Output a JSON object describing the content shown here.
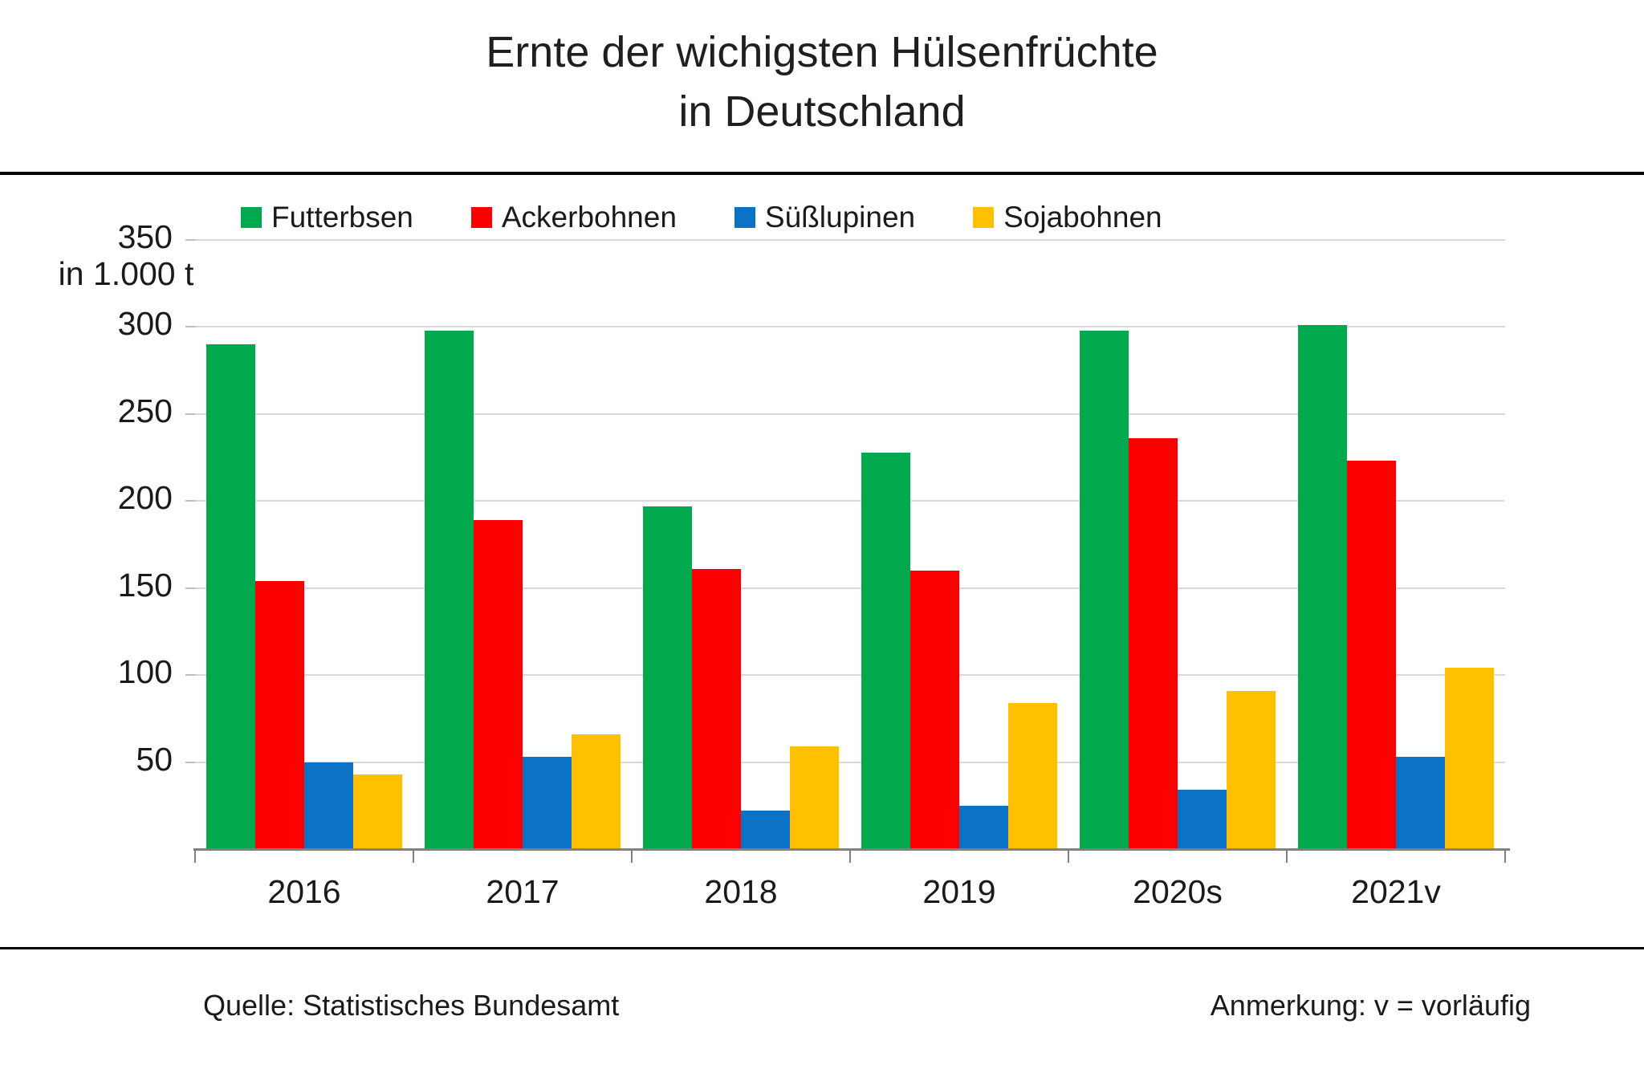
{
  "title": {
    "line1": "Ernte der wichigsten Hülsenfrüchte",
    "line2": "in Deutschland"
  },
  "y_axis": {
    "unit_label": "in 1.000 t",
    "ticks": [
      350,
      300,
      250,
      200,
      150,
      100,
      50
    ]
  },
  "footer": {
    "source": "Quelle: Statistisches Bundesamt",
    "note": "Anmerkung: v = vorläufig"
  },
  "colors": {
    "futterbsen": "#00A84E",
    "ackerbohnen": "#FA0000",
    "suesslupinen": "#0B72C5",
    "sojabohnen": "#FFC000",
    "gridline": "#d9d9d9",
    "axis": "#808080",
    "separator": "#000000"
  },
  "chart_data": {
    "type": "bar",
    "title": "Ernte der wichigsten Hülsenfrüchte in Deutschland",
    "ylabel": "in 1.000 t",
    "ylim": [
      0,
      350
    ],
    "grid": true,
    "legend_position": "top",
    "categories": [
      "2016",
      "2017",
      "2018",
      "2019",
      "2020s",
      "2021v"
    ],
    "series": [
      {
        "name": "Futterbsen",
        "color": "#00A84E",
        "values": [
          290,
          298,
          197,
          228,
          298,
          301
        ]
      },
      {
        "name": "Ackerbohnen",
        "color": "#FA0000",
        "values": [
          154,
          189,
          161,
          160,
          236,
          223
        ]
      },
      {
        "name": "Süßlupinen",
        "color": "#0B72C5",
        "values": [
          50,
          53,
          22,
          25,
          34,
          53
        ]
      },
      {
        "name": "Sojabohnen",
        "color": "#FFC000",
        "values": [
          43,
          66,
          59,
          84,
          91,
          104
        ]
      }
    ]
  }
}
